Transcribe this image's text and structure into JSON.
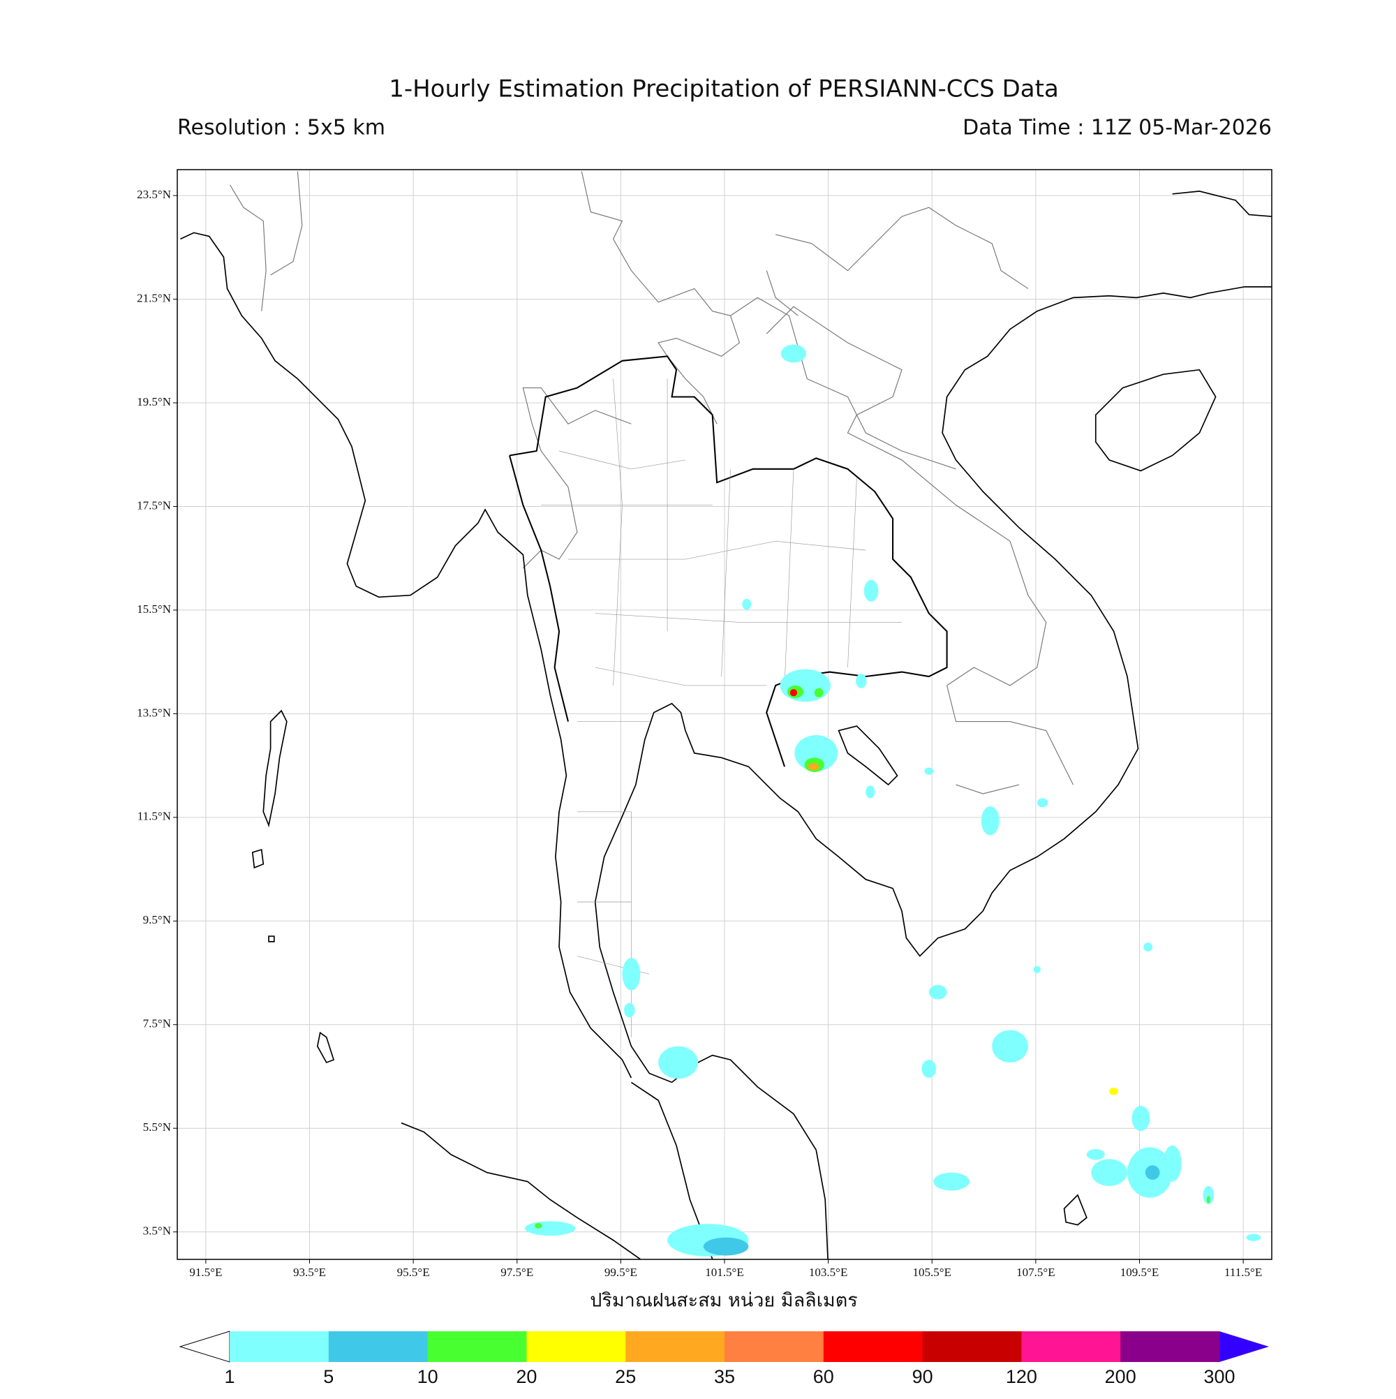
{
  "title": "1-Hourly Estimation Precipitation of PERSIANN-CCS Data",
  "subtitle_left": "Resolution : 5x5 km",
  "subtitle_right": "Data Time : 11Z 05-Mar-2026",
  "map": {
    "xlim": [
      90.95,
      112.05
    ],
    "ylim": [
      2.97,
      24.0
    ],
    "grid": true,
    "xticks": [
      {
        "value": 91.5,
        "label": "91.5°E"
      },
      {
        "value": 93.5,
        "label": "93.5°E"
      },
      {
        "value": 95.5,
        "label": "95.5°E"
      },
      {
        "value": 97.5,
        "label": "97.5°E"
      },
      {
        "value": 99.5,
        "label": "99.5°E"
      },
      {
        "value": 101.5,
        "label": "101.5°E"
      },
      {
        "value": 103.5,
        "label": "103.5°E"
      },
      {
        "value": 105.5,
        "label": "105.5°E"
      },
      {
        "value": 107.5,
        "label": "107.5°E"
      },
      {
        "value": 109.5,
        "label": "109.5°E"
      },
      {
        "value": 111.5,
        "label": "111.5°E"
      }
    ],
    "yticks": [
      {
        "value": 23.5,
        "label": "23.5°N"
      },
      {
        "value": 21.5,
        "label": "21.5°N"
      },
      {
        "value": 19.5,
        "label": "19.5°N"
      },
      {
        "value": 17.5,
        "label": "17.5°N"
      },
      {
        "value": 15.5,
        "label": "15.5°N"
      },
      {
        "value": 13.5,
        "label": "13.5°N"
      },
      {
        "value": 11.5,
        "label": "11.5°N"
      },
      {
        "value": 9.5,
        "label": "9.5°N"
      },
      {
        "value": 7.5,
        "label": "7.5°N"
      },
      {
        "value": 5.5,
        "label": "5.5°N"
      },
      {
        "value": 3.5,
        "label": "3.5°N"
      }
    ]
  },
  "colorbar": {
    "label": "ปริมาณฝนสะสม หน่วย มิลลิเมตร",
    "levels": [
      1,
      5,
      10,
      20,
      25,
      35,
      60,
      90,
      120,
      200,
      300
    ],
    "colors": [
      "#80ffff",
      "#40c8e8",
      "#48ff30",
      "#ffff00",
      "#ffa820",
      "#ff8040",
      "#ff0000",
      "#c80000",
      "#ff1493",
      "#8b008b"
    ],
    "under_color": "#ffffff",
    "over_color": "#3300ff"
  }
}
